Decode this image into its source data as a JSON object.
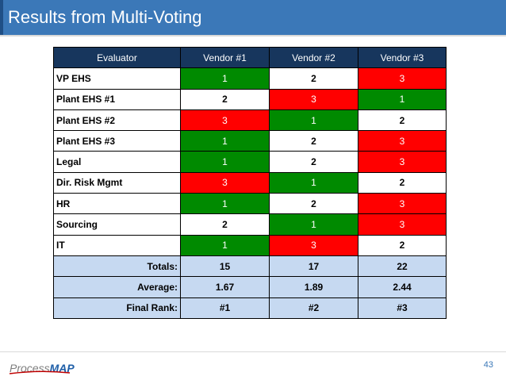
{
  "slide": {
    "title": "Results from Multi-Voting",
    "page_number": "43"
  },
  "logo": {
    "part1": "Process",
    "part2": "MAP"
  },
  "table": {
    "headers": [
      "Evaluator",
      "Vendor #1",
      "Vendor #2",
      "Vendor #3"
    ],
    "rows": [
      {
        "evaluator": "VP EHS",
        "scores": [
          "1",
          "2",
          "3"
        ],
        "colors": [
          "green",
          "white",
          "red"
        ]
      },
      {
        "evaluator": "Plant EHS #1",
        "scores": [
          "2",
          "3",
          "1"
        ],
        "colors": [
          "white",
          "red",
          "green"
        ]
      },
      {
        "evaluator": "Plant EHS #2",
        "scores": [
          "3",
          "1",
          "2"
        ],
        "colors": [
          "red",
          "green",
          "white"
        ]
      },
      {
        "evaluator": "Plant EHS #3",
        "scores": [
          "1",
          "2",
          "3"
        ],
        "colors": [
          "green",
          "white",
          "red"
        ]
      },
      {
        "evaluator": "Legal",
        "scores": [
          "1",
          "2",
          "3"
        ],
        "colors": [
          "green",
          "white",
          "red"
        ]
      },
      {
        "evaluator": "Dir. Risk Mgmt",
        "scores": [
          "3",
          "1",
          "2"
        ],
        "colors": [
          "red",
          "green",
          "white"
        ]
      },
      {
        "evaluator": "HR",
        "scores": [
          "1",
          "2",
          "3"
        ],
        "colors": [
          "green",
          "white",
          "red"
        ]
      },
      {
        "evaluator": "Sourcing",
        "scores": [
          "2",
          "1",
          "3"
        ],
        "colors": [
          "white",
          "green",
          "red"
        ]
      },
      {
        "evaluator": "IT",
        "scores": [
          "1",
          "3",
          "2"
        ],
        "colors": [
          "green",
          "red",
          "white"
        ]
      }
    ],
    "summary": [
      {
        "label": "Totals:",
        "values": [
          "15",
          "17",
          "22"
        ]
      },
      {
        "label": "Average:",
        "values": [
          "1.67",
          "1.89",
          "2.44"
        ]
      },
      {
        "label": "Final Rank:",
        "values": [
          "#1",
          "#2",
          "#3"
        ]
      }
    ]
  },
  "colors": {
    "title_bar": "#3b78b8",
    "header": "#17365d",
    "green": "#008a00",
    "red": "#ff0000",
    "summary": "#c6d9f1"
  }
}
